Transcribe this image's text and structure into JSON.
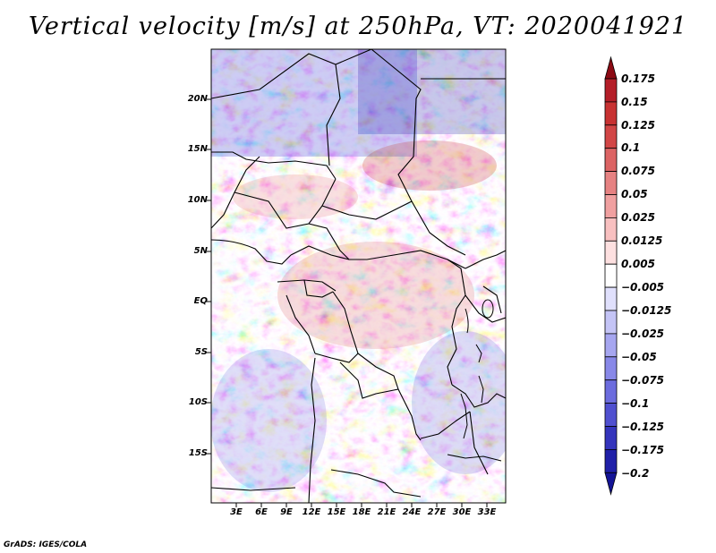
{
  "title": "Vertical velocity [m/s] at 250hPa, VT: 2020041921",
  "credit": "GrADS: IGES/COLA",
  "map": {
    "region": "Central Africa",
    "lat_range": [
      -20,
      25
    ],
    "lon_range": [
      0,
      35
    ],
    "lat_ticks": [
      {
        "value": 20,
        "label": "20N"
      },
      {
        "value": 15,
        "label": "15N"
      },
      {
        "value": 10,
        "label": "10N"
      },
      {
        "value": 5,
        "label": "5N"
      },
      {
        "value": 0,
        "label": "EQ"
      },
      {
        "value": -5,
        "label": "5S"
      },
      {
        "value": -10,
        "label": "10S"
      },
      {
        "value": -15,
        "label": "15S"
      }
    ],
    "lon_ticks": [
      {
        "value": 3,
        "label": "3E"
      },
      {
        "value": 6,
        "label": "6E"
      },
      {
        "value": 9,
        "label": "9E"
      },
      {
        "value": 12,
        "label": "12E"
      },
      {
        "value": 15,
        "label": "15E"
      },
      {
        "value": 18,
        "label": "18E"
      },
      {
        "value": 21,
        "label": "21E"
      },
      {
        "value": 24,
        "label": "24E"
      },
      {
        "value": 27,
        "label": "27E"
      },
      {
        "value": 30,
        "label": "30E"
      },
      {
        "value": 33,
        "label": "33E"
      }
    ]
  },
  "colorbar": {
    "levels": [
      {
        "label": "0.175",
        "color": "#a0141e"
      },
      {
        "label": "0.15",
        "color": "#b41e28"
      },
      {
        "label": "0.125",
        "color": "#c83232"
      },
      {
        "label": "0.1",
        "color": "#d24646"
      },
      {
        "label": "0.075",
        "color": "#dc6464"
      },
      {
        "label": "0.05",
        "color": "#e68282"
      },
      {
        "label": "0.025",
        "color": "#f0a0a0"
      },
      {
        "label": "0.0125",
        "color": "#f8c0c0"
      },
      {
        "label": "0.005",
        "color": "#fde0e0"
      },
      {
        "label": "−0.005",
        "color": "#ffffff"
      },
      {
        "label": "−0.0125",
        "color": "#e0e0fc"
      },
      {
        "label": "−0.025",
        "color": "#c4c4f6"
      },
      {
        "label": "−0.05",
        "color": "#a6a6f0"
      },
      {
        "label": "−0.075",
        "color": "#8888e8"
      },
      {
        "label": "−0.1",
        "color": "#6c6cde"
      },
      {
        "label": "−0.125",
        "color": "#5050d0"
      },
      {
        "label": "−0.175",
        "color": "#3434bc"
      },
      {
        "label": "−0.2",
        "color": "#2020a8"
      }
    ],
    "top_color": "#8c0a14",
    "bottom_color": "#141496"
  }
}
